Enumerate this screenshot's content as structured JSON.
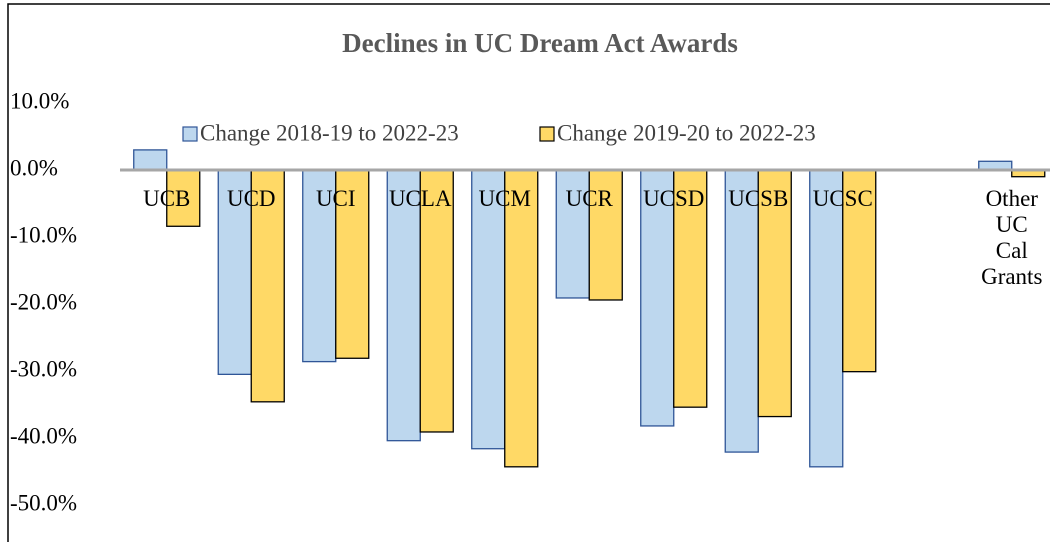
{
  "chart_data": {
    "type": "bar",
    "title": "Declines in UC Dream Act Awards",
    "categories": [
      "UCB",
      "UCD",
      "UCI",
      "UCLA",
      "UCM",
      "UCR",
      "UCSD",
      "UCSB",
      "UCSC",
      null,
      "Other UC Cal Grants"
    ],
    "series": [
      {
        "name": "Change 2018-19 to 2022-23",
        "color": "#bdd7ee",
        "stroke": "#2f5597",
        "values": [
          3.0,
          -30.5,
          -28.6,
          -40.4,
          -41.6,
          -19.1,
          -38.2,
          -42.1,
          -44.3,
          null,
          1.3
        ]
      },
      {
        "name": "Change 2019-20 to 2022-23",
        "color": "#ffd966",
        "stroke": "#000000",
        "values": [
          -8.4,
          -34.6,
          -28.1,
          -39.1,
          -44.3,
          -19.4,
          -35.4,
          -36.8,
          -30.1,
          null,
          -1.0
        ]
      }
    ],
    "ylim": [
      -55,
      15
    ],
    "yticks": [
      {
        "value": 10,
        "label": "10.0%"
      },
      {
        "value": 0,
        "label": "0.0%"
      },
      {
        "value": -10,
        "label": "-10.0%"
      },
      {
        "value": -20,
        "label": "-20.0%"
      },
      {
        "value": -30,
        "label": "-30.0%"
      },
      {
        "value": -40,
        "label": "-40.0%"
      },
      {
        "value": -50,
        "label": "-50.0%"
      }
    ],
    "grid": false,
    "legend": "top"
  }
}
